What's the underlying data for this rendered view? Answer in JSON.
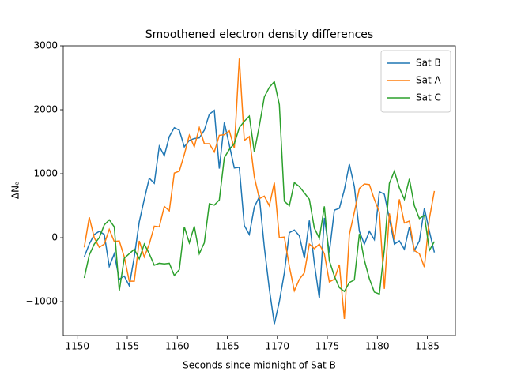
{
  "chart_data": {
    "type": "line",
    "title": "Smoothened electron density differences",
    "x_label": "Seconds since midnight of Sat B",
    "y_label": "ΔNₑ",
    "x": [
      1150.7,
      1151.2,
      1151.7,
      1152.2,
      1152.7,
      1153.2,
      1153.7,
      1154.2,
      1154.7,
      1155.2,
      1155.7,
      1156.2,
      1156.7,
      1157.2,
      1157.7,
      1158.2,
      1158.7,
      1159.2,
      1159.7,
      1160.2,
      1160.7,
      1161.2,
      1161.7,
      1162.2,
      1162.7,
      1163.2,
      1163.7,
      1164.2,
      1164.7,
      1165.2,
      1165.7,
      1166.2,
      1166.7,
      1167.2,
      1167.7,
      1168.2,
      1168.7,
      1169.2,
      1169.7,
      1170.2,
      1170.7,
      1171.2,
      1171.7,
      1172.2,
      1172.7,
      1173.2,
      1173.7,
      1174.2,
      1174.7,
      1175.2,
      1175.7,
      1176.2,
      1176.7,
      1177.2,
      1177.7,
      1178.2,
      1178.7,
      1179.2,
      1179.7,
      1180.2,
      1180.7,
      1181.2,
      1181.7,
      1182.2,
      1182.7,
      1183.2,
      1183.7,
      1184.2,
      1184.7,
      1185.2,
      1185.7
    ],
    "series": [
      {
        "name": "Sat B",
        "color": "#1f77b4",
        "values": [
          -300,
          -100,
          50,
          100,
          50,
          -450,
          -250,
          -650,
          -600,
          -750,
          -300,
          250,
          600,
          930,
          850,
          1430,
          1280,
          1580,
          1720,
          1680,
          1420,
          1520,
          1550,
          1560,
          1680,
          1930,
          1990,
          1080,
          1800,
          1450,
          1090,
          1100,
          190,
          50,
          480,
          640,
          -150,
          -800,
          -1350,
          -1000,
          -550,
          80,
          120,
          30,
          -320,
          270,
          -400,
          -950,
          310,
          -230,
          430,
          460,
          750,
          1150,
          800,
          100,
          -100,
          100,
          -30,
          720,
          680,
          300,
          -100,
          -50,
          -180,
          170,
          -200,
          -50,
          460,
          100,
          -230
        ]
      },
      {
        "name": "Sat A",
        "color": "#ff7f0e",
        "values": [
          -150,
          320,
          0,
          -150,
          -100,
          130,
          -60,
          -50,
          -300,
          -680,
          -680,
          -50,
          -300,
          -100,
          180,
          170,
          490,
          420,
          1010,
          1040,
          1300,
          1600,
          1420,
          1720,
          1470,
          1470,
          1340,
          1600,
          1610,
          1670,
          1400,
          2800,
          1520,
          1580,
          950,
          610,
          650,
          500,
          860,
          0,
          10,
          -450,
          -830,
          -650,
          -550,
          -100,
          -170,
          -100,
          -250,
          -690,
          -650,
          -420,
          -1270,
          50,
          400,
          770,
          840,
          830,
          600,
          400,
          -800,
          380,
          -30,
          600,
          230,
          260,
          -200,
          -250,
          -460,
          300,
          730
        ]
      },
      {
        "name": "Sat C",
        "color": "#2ca02c",
        "values": [
          -630,
          -270,
          -100,
          0,
          200,
          280,
          170,
          -830,
          -320,
          -250,
          -180,
          -330,
          -100,
          -250,
          -430,
          -400,
          -410,
          -400,
          -590,
          -500,
          170,
          -80,
          180,
          -250,
          -80,
          530,
          510,
          590,
          1250,
          1380,
          1470,
          1720,
          1820,
          1900,
          1340,
          1750,
          2200,
          2350,
          2440,
          2080,
          570,
          500,
          860,
          800,
          700,
          600,
          150,
          -10,
          490,
          -360,
          -600,
          -780,
          -840,
          -700,
          -660,
          60,
          -350,
          -640,
          -850,
          -880,
          -180,
          850,
          1040,
          780,
          600,
          920,
          500,
          300,
          350,
          -200,
          -60
        ]
      }
    ],
    "xlim": [
      1148.6,
      1187.8
    ],
    "ylim": [
      -1530,
      3000
    ],
    "xticks": [
      1150,
      1155,
      1160,
      1165,
      1170,
      1175,
      1180,
      1185
    ],
    "yticks": [
      {
        "value": -1000,
        "label": "−1000"
      },
      0,
      1000,
      2000,
      3000
    ],
    "legend": "upper right",
    "grid": false
  }
}
